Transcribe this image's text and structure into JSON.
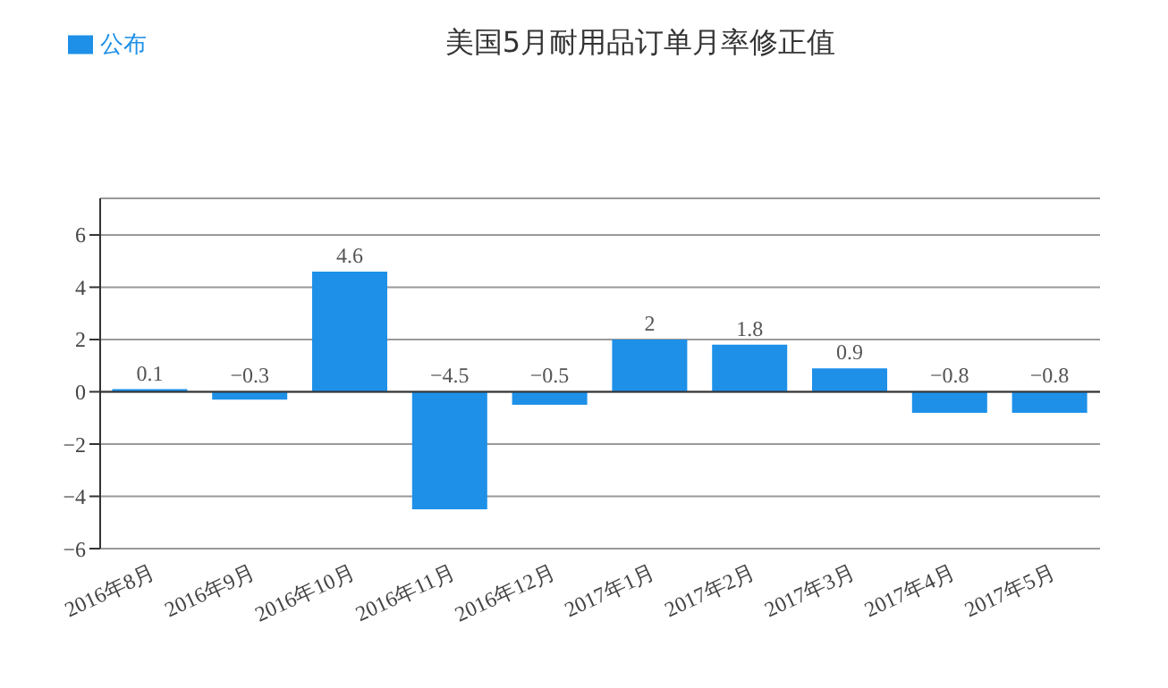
{
  "chart_data": {
    "type": "bar",
    "title": "美国5月耐用品订单月率修正值",
    "categories": [
      "2016年8月",
      "2016年9月",
      "2016年10月",
      "2016年11月",
      "2016年12月",
      "2017年1月",
      "2017年2月",
      "2017年3月",
      "2017年4月",
      "2017年5月"
    ],
    "series": [
      {
        "name": "公布",
        "color": "#1e90e8",
        "values": [
          0.1,
          -0.3,
          4.6,
          -4.5,
          -0.5,
          2,
          1.8,
          0.9,
          -0.8,
          -0.8
        ]
      }
    ],
    "ylim": [
      -6,
      7.4
    ],
    "yticks": [
      -6,
      -4,
      -2,
      0,
      2,
      4,
      6
    ],
    "grid": "y",
    "legend": "top left",
    "data_labels": true
  }
}
